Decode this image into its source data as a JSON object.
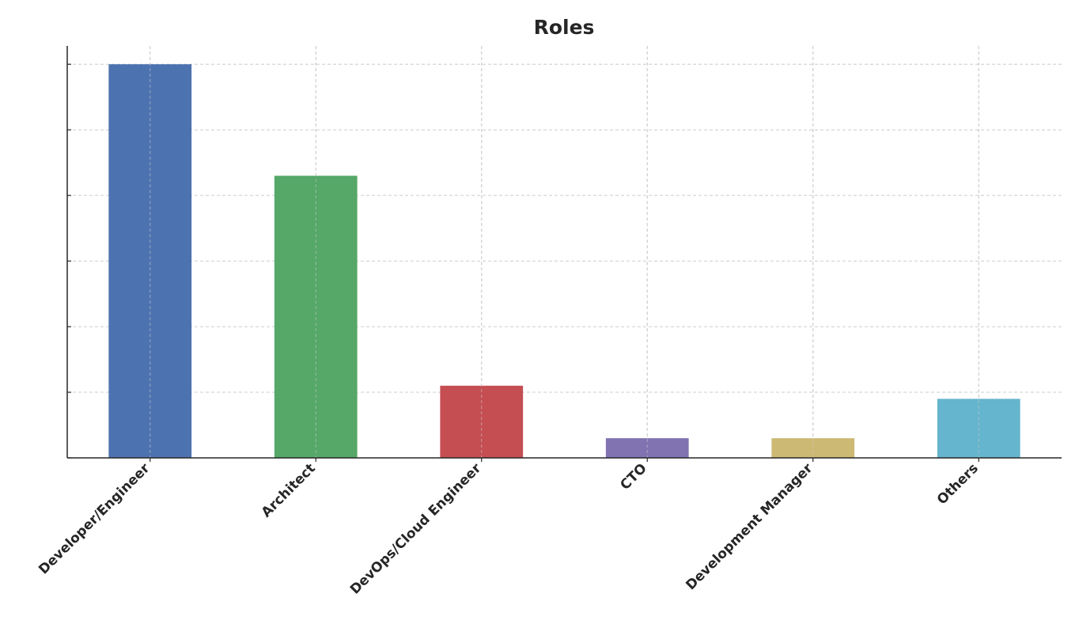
{
  "chart_data": {
    "type": "bar",
    "title": "Roles",
    "categories": [
      "Developer/Engineer",
      "Architect",
      "DevOps/Cloud Engineer",
      "CTO",
      "Development Manager",
      "Others"
    ],
    "values": [
      6,
      4.3,
      1.1,
      0.3,
      0.3,
      0.9
    ],
    "colors": [
      "#4c72b0",
      "#55a868",
      "#c44e52",
      "#8172b2",
      "#ccb974",
      "#64b5cd"
    ],
    "ylim": [
      0,
      6.28
    ],
    "yticks": [
      0,
      1,
      2,
      3,
      4,
      5,
      6
    ],
    "ytick_labels": false,
    "grid": true
  }
}
